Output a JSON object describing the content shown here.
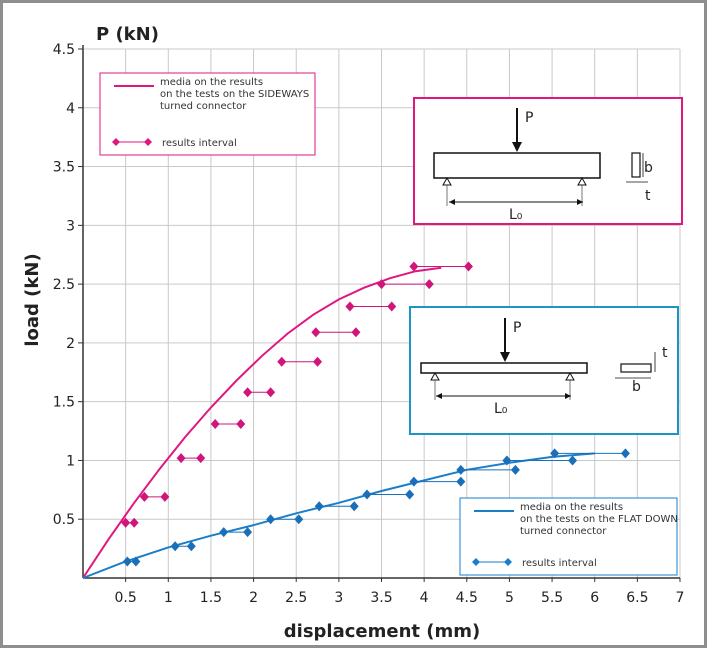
{
  "chart_data": {
    "type": "scatter",
    "xlabel": "displacement (mm)",
    "ylabel": "load (kN)",
    "y_unit_label": "P (kN)",
    "xlim": [
      0,
      7
    ],
    "ylim": [
      0,
      4.5
    ],
    "x_ticks": [
      "0.5",
      "1",
      "1.5",
      "2",
      "2.5",
      "3",
      "3.5",
      "4",
      "4.5",
      "5",
      "5.5",
      "6",
      "6.5",
      "7"
    ],
    "y_ticks": [
      "0.5",
      "1",
      "1.5",
      "2",
      "2.5",
      "3",
      "3.5",
      "4",
      "4.5"
    ],
    "grid": true,
    "series": [
      {
        "name": "media on the results on the tests on the SIDEWAYS turned connector",
        "color": "#e0177f",
        "kind": "mean-line",
        "x": [
          0,
          0.3,
          0.6,
          0.9,
          1.2,
          1.5,
          1.8,
          2.1,
          2.4,
          2.7,
          3.0,
          3.3,
          3.6,
          3.9,
          4.2
        ],
        "y": [
          0,
          0.33,
          0.64,
          0.93,
          1.2,
          1.45,
          1.68,
          1.89,
          2.08,
          2.24,
          2.37,
          2.47,
          2.55,
          2.61,
          2.64
        ]
      },
      {
        "name": "results interval",
        "color": "#d0167a",
        "kind": "interval",
        "intervals": [
          {
            "y": 0.47,
            "x": [
              0.5,
              0.6
            ]
          },
          {
            "y": 0.69,
            "x": [
              0.72,
              0.96
            ]
          },
          {
            "y": 1.02,
            "x": [
              1.15,
              1.38
            ]
          },
          {
            "y": 1.31,
            "x": [
              1.55,
              1.85
            ]
          },
          {
            "y": 1.58,
            "x": [
              1.93,
              2.2
            ]
          },
          {
            "y": 1.84,
            "x": [
              2.33,
              2.75
            ]
          },
          {
            "y": 2.09,
            "x": [
              2.73,
              3.2
            ]
          },
          {
            "y": 2.31,
            "x": [
              3.13,
              3.62
            ]
          },
          {
            "y": 2.5,
            "x": [
              3.5,
              4.06
            ]
          },
          {
            "y": 2.65,
            "x": [
              3.88,
              4.52
            ]
          }
        ]
      },
      {
        "name": "media on the results on the tests on the FLAT DOWN turned connector",
        "color": "#1a7fcb",
        "kind": "mean-line",
        "x": [
          0,
          0.5,
          1.0,
          1.5,
          2.0,
          2.5,
          3.0,
          3.5,
          4.0,
          4.5,
          5.0,
          5.5,
          6.0
        ],
        "y": [
          0,
          0.14,
          0.26,
          0.36,
          0.45,
          0.55,
          0.64,
          0.74,
          0.83,
          0.92,
          0.98,
          1.03,
          1.06
        ]
      },
      {
        "name": "results interval",
        "color": "#1a6fb8",
        "kind": "interval",
        "intervals": [
          {
            "y": 0.14,
            "x": [
              0.52,
              0.62
            ]
          },
          {
            "y": 0.27,
            "x": [
              1.08,
              1.27
            ]
          },
          {
            "y": 0.39,
            "x": [
              1.65,
              1.93
            ]
          },
          {
            "y": 0.5,
            "x": [
              2.2,
              2.53
            ]
          },
          {
            "y": 0.61,
            "x": [
              2.77,
              3.18
            ]
          },
          {
            "y": 0.71,
            "x": [
              3.33,
              3.83
            ]
          },
          {
            "y": 0.82,
            "x": [
              3.88,
              4.43
            ]
          },
          {
            "y": 0.92,
            "x": [
              4.43,
              5.07
            ]
          },
          {
            "y": 1.0,
            "x": [
              4.97,
              5.74
            ]
          },
          {
            "y": 1.06,
            "x": [
              5.53,
              6.36
            ]
          }
        ]
      }
    ],
    "legends": [
      {
        "position": "top-left",
        "color": "#e0177f",
        "border": "#e0177f",
        "line_label": "media on the results\non the tests on the SIDEWAYS\nturned connector",
        "interval_label": "results interval"
      },
      {
        "position": "bottom-right",
        "color": "#1a7fcb",
        "border": "#1a7fcb",
        "line_label": "media on the results\non the tests on the FLAT DOWN\nturned connector",
        "interval_label": "results interval"
      }
    ],
    "diagrams": [
      {
        "border": "#e0177f",
        "load_label": "P",
        "span_label": "L₀",
        "dim1": "b",
        "dim2": "t"
      },
      {
        "border": "#1a95c4",
        "load_label": "P",
        "span_label": "L₀",
        "dim1": "t",
        "dim2": "b"
      }
    ]
  }
}
